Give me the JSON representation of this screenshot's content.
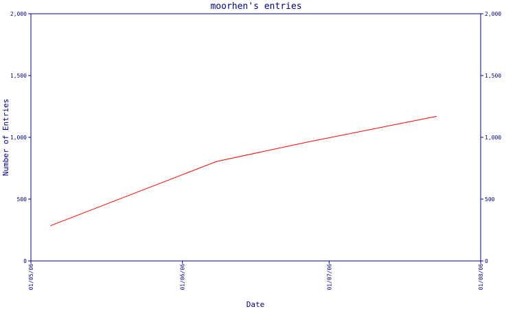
{
  "chart_data": {
    "type": "line",
    "title": "moorhen's entries",
    "xlabel": "Date",
    "ylabel": "Number of Entries",
    "ylim": [
      0,
      2000
    ],
    "y_ticks": [
      0,
      500,
      1000,
      1500,
      2000
    ],
    "y_tick_labels": [
      "0",
      "500",
      "1,000",
      "1,500",
      "2,000"
    ],
    "x_range": [
      "2006-05-01",
      "2006-08-01"
    ],
    "x_ticks": [
      "2006-05-01",
      "2006-06-01",
      "2006-07-01",
      "2006-08-01"
    ],
    "x_tick_labels": [
      "01/05/06",
      "01/06/06",
      "01/07/06",
      "01/08/06"
    ],
    "grid": false,
    "series": [
      {
        "color": "#ff0000",
        "points": [
          {
            "x": "2006-05-05",
            "y": 285
          },
          {
            "x": "2006-06-08",
            "y": 805
          },
          {
            "x": "2006-06-27",
            "y": 965
          },
          {
            "x": "2006-07-23",
            "y": 1170
          }
        ]
      }
    ],
    "axis_color": "#00007f"
  }
}
